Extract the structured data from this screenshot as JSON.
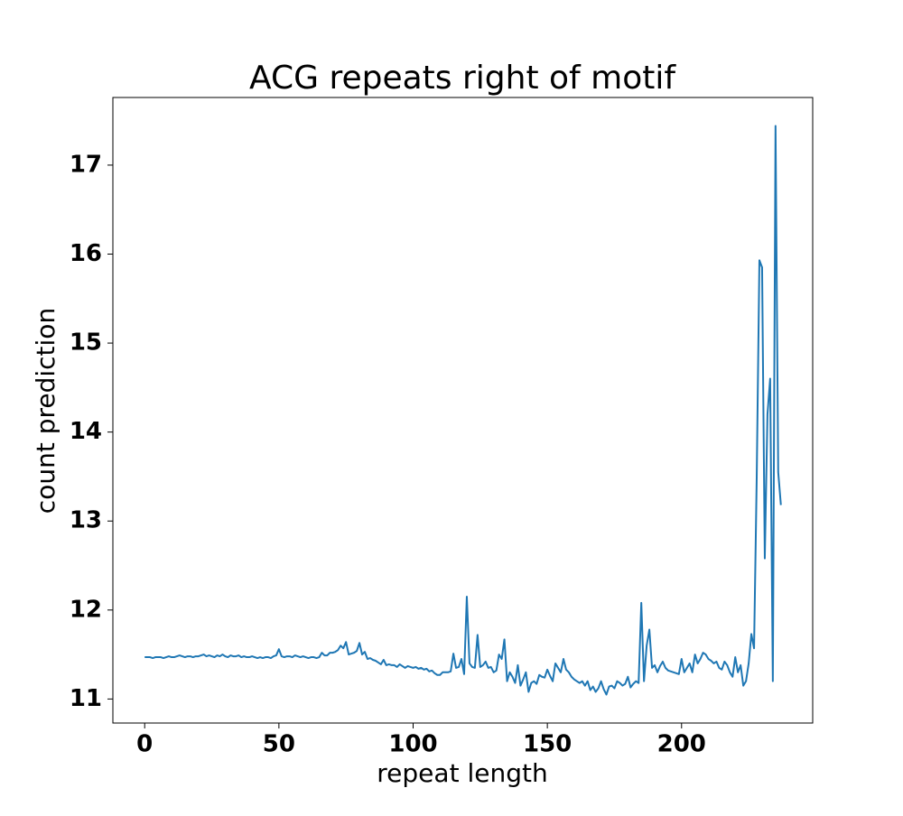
{
  "chart_data": {
    "type": "line",
    "title": "ACG repeats right of motif",
    "x_label": "repeat length",
    "y_label": "count prediction",
    "color": "#1f77b4",
    "x": [
      0,
      1,
      2,
      3,
      4,
      5,
      6,
      7,
      8,
      9,
      10,
      11,
      12,
      13,
      14,
      15,
      16,
      17,
      18,
      19,
      20,
      21,
      22,
      23,
      24,
      25,
      26,
      27,
      28,
      29,
      30,
      31,
      32,
      33,
      34,
      35,
      36,
      37,
      38,
      39,
      40,
      41,
      42,
      43,
      44,
      45,
      46,
      47,
      48,
      49,
      50,
      51,
      52,
      53,
      54,
      55,
      56,
      57,
      58,
      59,
      60,
      61,
      62,
      63,
      64,
      65,
      66,
      67,
      68,
      69,
      70,
      71,
      72,
      73,
      74,
      75,
      76,
      77,
      78,
      79,
      80,
      81,
      82,
      83,
      84,
      85,
      86,
      87,
      88,
      89,
      90,
      91,
      92,
      93,
      94,
      95,
      96,
      97,
      98,
      99,
      100,
      101,
      102,
      103,
      104,
      105,
      106,
      107,
      108,
      109,
      110,
      111,
      112,
      113,
      114,
      115,
      116,
      117,
      118,
      119,
      120,
      121,
      122,
      123,
      124,
      125,
      126,
      127,
      128,
      129,
      130,
      131,
      132,
      133,
      134,
      135,
      136,
      137,
      138,
      139,
      140,
      141,
      142,
      143,
      144,
      145,
      146,
      147,
      148,
      149,
      150,
      151,
      152,
      153,
      154,
      155,
      156,
      157,
      158,
      159,
      160,
      161,
      162,
      163,
      164,
      165,
      166,
      167,
      168,
      169,
      170,
      171,
      172,
      173,
      174,
      175,
      176,
      177,
      178,
      179,
      180,
      181,
      182,
      183,
      184,
      185,
      186,
      187,
      188,
      189,
      190,
      191,
      192,
      193,
      194,
      195,
      196,
      197,
      198,
      199,
      200,
      201,
      202,
      203,
      204,
      205,
      206,
      207,
      208,
      209,
      210,
      211,
      212,
      213,
      214,
      215,
      216,
      217,
      218,
      219,
      220,
      221,
      222,
      223,
      224,
      225,
      226,
      227,
      228,
      229,
      230,
      231,
      232,
      233,
      234,
      235,
      236,
      237
    ],
    "values": [
      11.47,
      11.47,
      11.47,
      11.46,
      11.47,
      11.47,
      11.47,
      11.46,
      11.47,
      11.48,
      11.47,
      11.47,
      11.48,
      11.49,
      11.48,
      11.47,
      11.48,
      11.48,
      11.47,
      11.48,
      11.48,
      11.49,
      11.5,
      11.48,
      11.49,
      11.48,
      11.47,
      11.49,
      11.48,
      11.5,
      11.48,
      11.47,
      11.49,
      11.48,
      11.48,
      11.49,
      11.47,
      11.48,
      11.47,
      11.47,
      11.48,
      11.47,
      11.46,
      11.47,
      11.46,
      11.47,
      11.47,
      11.46,
      11.48,
      11.49,
      11.56,
      11.48,
      11.47,
      11.48,
      11.48,
      11.47,
      11.49,
      11.48,
      11.47,
      11.48,
      11.47,
      11.46,
      11.47,
      11.47,
      11.46,
      11.47,
      11.52,
      11.49,
      11.49,
      11.52,
      11.52,
      11.53,
      11.55,
      11.6,
      11.57,
      11.64,
      11.5,
      11.51,
      11.52,
      11.54,
      11.63,
      11.5,
      11.53,
      11.45,
      11.46,
      11.44,
      11.43,
      11.41,
      11.39,
      11.44,
      11.38,
      11.39,
      11.38,
      11.38,
      11.36,
      11.39,
      11.37,
      11.35,
      11.37,
      11.36,
      11.35,
      11.36,
      11.34,
      11.35,
      11.33,
      11.34,
      11.31,
      11.32,
      11.29,
      11.27,
      11.27,
      11.3,
      11.3,
      11.3,
      11.31,
      11.51,
      11.35,
      11.36,
      11.45,
      11.28,
      12.15,
      11.4,
      11.36,
      11.35,
      11.72,
      11.36,
      11.38,
      11.42,
      11.35,
      11.36,
      11.3,
      11.32,
      11.5,
      11.45,
      11.67,
      11.2,
      11.3,
      11.25,
      11.18,
      11.38,
      11.15,
      11.22,
      11.3,
      11.08,
      11.18,
      11.2,
      11.17,
      11.27,
      11.25,
      11.24,
      11.33,
      11.26,
      11.2,
      11.4,
      11.35,
      11.3,
      11.45,
      11.33,
      11.3,
      11.25,
      11.22,
      11.2,
      11.18,
      11.2,
      11.15,
      11.2,
      11.1,
      11.14,
      11.08,
      11.12,
      11.2,
      11.11,
      11.05,
      11.14,
      11.15,
      11.12,
      11.2,
      11.18,
      11.15,
      11.17,
      11.25,
      11.13,
      11.17,
      11.2,
      11.18,
      12.08,
      11.2,
      11.6,
      11.78,
      11.35,
      11.38,
      11.3,
      11.37,
      11.42,
      11.35,
      11.32,
      11.31,
      11.3,
      11.29,
      11.28,
      11.45,
      11.3,
      11.35,
      11.4,
      11.3,
      11.5,
      11.4,
      11.45,
      11.52,
      11.5,
      11.45,
      11.43,
      11.4,
      11.42,
      11.35,
      11.33,
      11.42,
      11.38,
      11.3,
      11.25,
      11.47,
      11.3,
      11.38,
      11.15,
      11.2,
      11.4,
      11.73,
      11.57,
      13.5,
      15.93,
      15.85,
      12.58,
      14.2,
      14.6,
      11.2,
      17.44,
      13.55,
      13.18
    ],
    "xlim": [
      -11.85,
      248.85
    ],
    "xticks": [
      0,
      50,
      100,
      150,
      200
    ],
    "ylim": [
      10.73,
      17.76
    ],
    "yticks": [
      11,
      12,
      13,
      14,
      15,
      16,
      17
    ]
  }
}
